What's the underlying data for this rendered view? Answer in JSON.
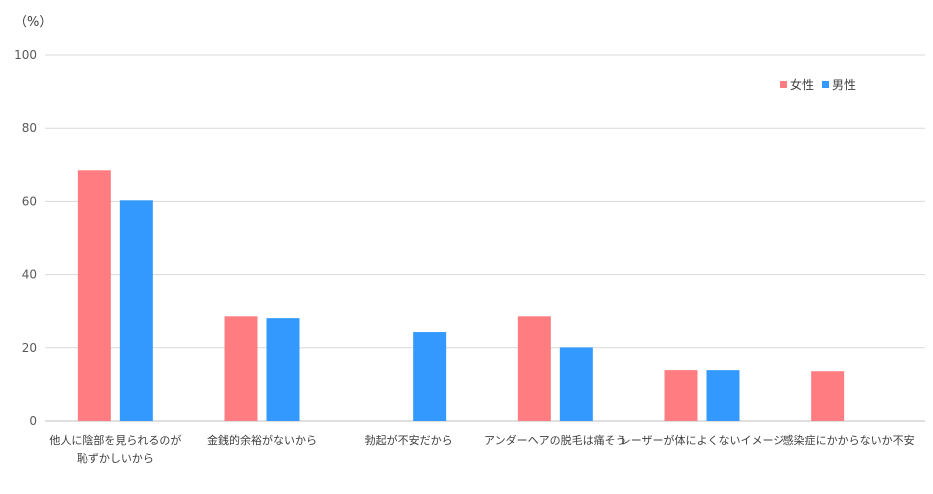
{
  "chart_data": {
    "type": "bar",
    "y_unit": "（%）",
    "ylim": [
      0,
      100
    ],
    "y_ticks": [
      0,
      20,
      40,
      60,
      80,
      100
    ],
    "grid": true,
    "legend_position": "top-right",
    "categories": [
      [
        "他人に陰部を見られるのが",
        "恥ずかしいから"
      ],
      [
        "金銭的余裕がないから"
      ],
      [
        "勃起が不安だから"
      ],
      [
        "アンダーヘアの脱毛は痛そう"
      ],
      [
        "レーザーが体によくないイメージ"
      ],
      [
        "感染症にかからないか不安"
      ]
    ],
    "series": [
      {
        "name": "女性",
        "color": "#ff7c80",
        "values": [
          68.5,
          28.6,
          null,
          28.6,
          13.9,
          13.6
        ]
      },
      {
        "name": "男性",
        "color": "#3399ff",
        "values": [
          60.3,
          28.1,
          24.3,
          20.1,
          13.9,
          null
        ]
      }
    ]
  }
}
